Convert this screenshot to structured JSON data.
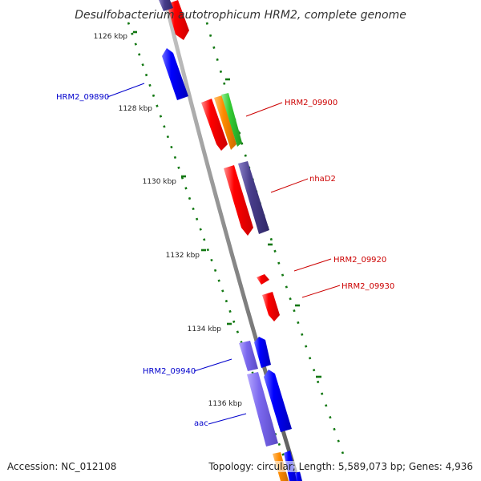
{
  "title": "Desulfobacterium autotrophicum HRM2, complete genome",
  "footer": {
    "accession": "Accession: NC_012108",
    "topology": "Topology: circular; Length: 5,589,073 bp; Genes: 4,936"
  },
  "ticks": [
    {
      "label": "1126 kbp"
    },
    {
      "label": "1128 kbp"
    },
    {
      "label": "1130 kbp"
    },
    {
      "label": "1132 kbp"
    },
    {
      "label": "1134 kbp"
    },
    {
      "label": "1136 kbp"
    }
  ],
  "gene_labels": [
    {
      "text": "HRM2_09890",
      "color": "#0000cc"
    },
    {
      "text": "HRM2_09900",
      "color": "#cc0000"
    },
    {
      "text": "nhaD2",
      "color": "#cc0000"
    },
    {
      "text": "HRM2_09920",
      "color": "#cc0000"
    },
    {
      "text": "HRM2_09930",
      "color": "#cc0000"
    },
    {
      "text": "HRM2_09940",
      "color": "#0000cc"
    },
    {
      "text": "aac",
      "color": "#0000cc"
    }
  ],
  "colors": {
    "backbone": "#888888",
    "forward_strand": "#ff0000",
    "reverse_strand": "#0000ff",
    "purple_feature": "#483d8b",
    "lavender_feature": "#7b68ee",
    "orange_feature": "#ff8c00",
    "green_feature": "#33cc33",
    "gc_dots": "#006400"
  }
}
